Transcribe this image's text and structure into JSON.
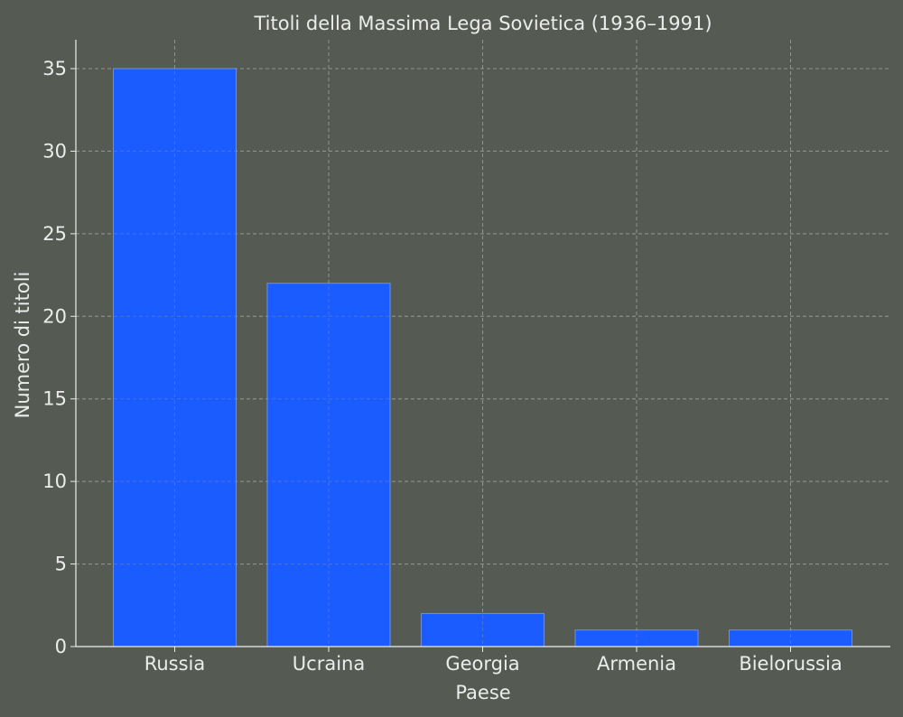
{
  "chart_data": {
    "type": "bar",
    "title": "Titoli della Massima Lega Sovietica (1936–1991)",
    "xlabel": "Paese",
    "ylabel": "Numero di titoli",
    "categories": [
      "Russia",
      "Ucraina",
      "Georgia",
      "Armenia",
      "Bielorussia"
    ],
    "values": [
      35,
      22,
      2,
      1,
      1
    ],
    "ylim": [
      0,
      36.75
    ],
    "yticks": [
      0,
      5,
      10,
      15,
      20,
      25,
      30,
      35
    ],
    "grid": true,
    "colors": {
      "background": "#555b53",
      "bar": "#1a5cff",
      "bar_edge": "#6e8fe0",
      "text": "#ececec",
      "grid": "#9aa097",
      "axis": "#ececec"
    }
  }
}
